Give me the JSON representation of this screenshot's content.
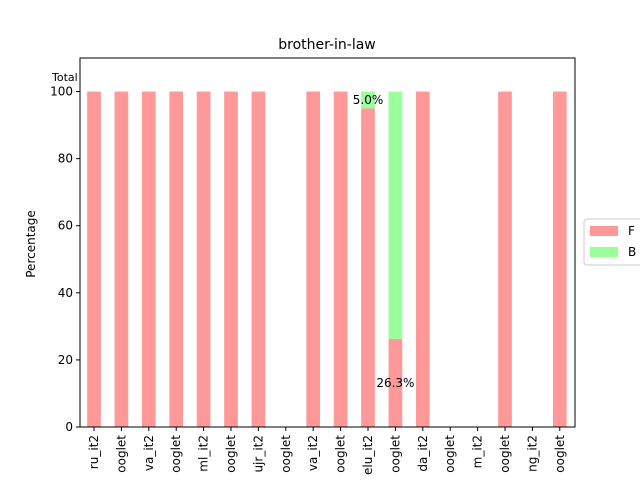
{
  "chart_data": {
    "type": "bar",
    "stacked": true,
    "title": "brother-in-law",
    "ylabel": "Percentage",
    "corner_label": "Total",
    "ylim": [
      0,
      110
    ],
    "yticks": [
      0,
      20,
      40,
      60,
      80,
      100
    ],
    "categories": [
      "ru_it2",
      "ooglet",
      "va_it2",
      "ooglet",
      "ml_it2",
      "ooglet",
      "ujr_it2",
      "ooglet",
      "va_it2",
      "ooglet",
      "elu_it2",
      "ooglet",
      "da_it2",
      "ooglet",
      "m_it2",
      "ooglet",
      "ng_it2",
      "ooglet"
    ],
    "series": [
      {
        "name": "F",
        "color": "#ff9999",
        "values": [
          100,
          100,
          100,
          100,
          100,
          100,
          100,
          0,
          100,
          100,
          95,
          26.3,
          100,
          0,
          0,
          100,
          0,
          100
        ]
      },
      {
        "name": "B",
        "color": "#99ff99",
        "values": [
          0,
          0,
          0,
          0,
          0,
          0,
          0,
          0,
          0,
          0,
          5,
          73.7,
          0,
          0,
          0,
          0,
          0,
          0
        ]
      }
    ],
    "annotations": [
      {
        "text": "5.0%",
        "category_index": 10,
        "y": 97.5
      },
      {
        "text": "26.3%",
        "category_index": 11,
        "y": 13.15
      }
    ],
    "legend": {
      "position": "right",
      "entries": [
        "F",
        "B"
      ]
    },
    "grid": false
  }
}
